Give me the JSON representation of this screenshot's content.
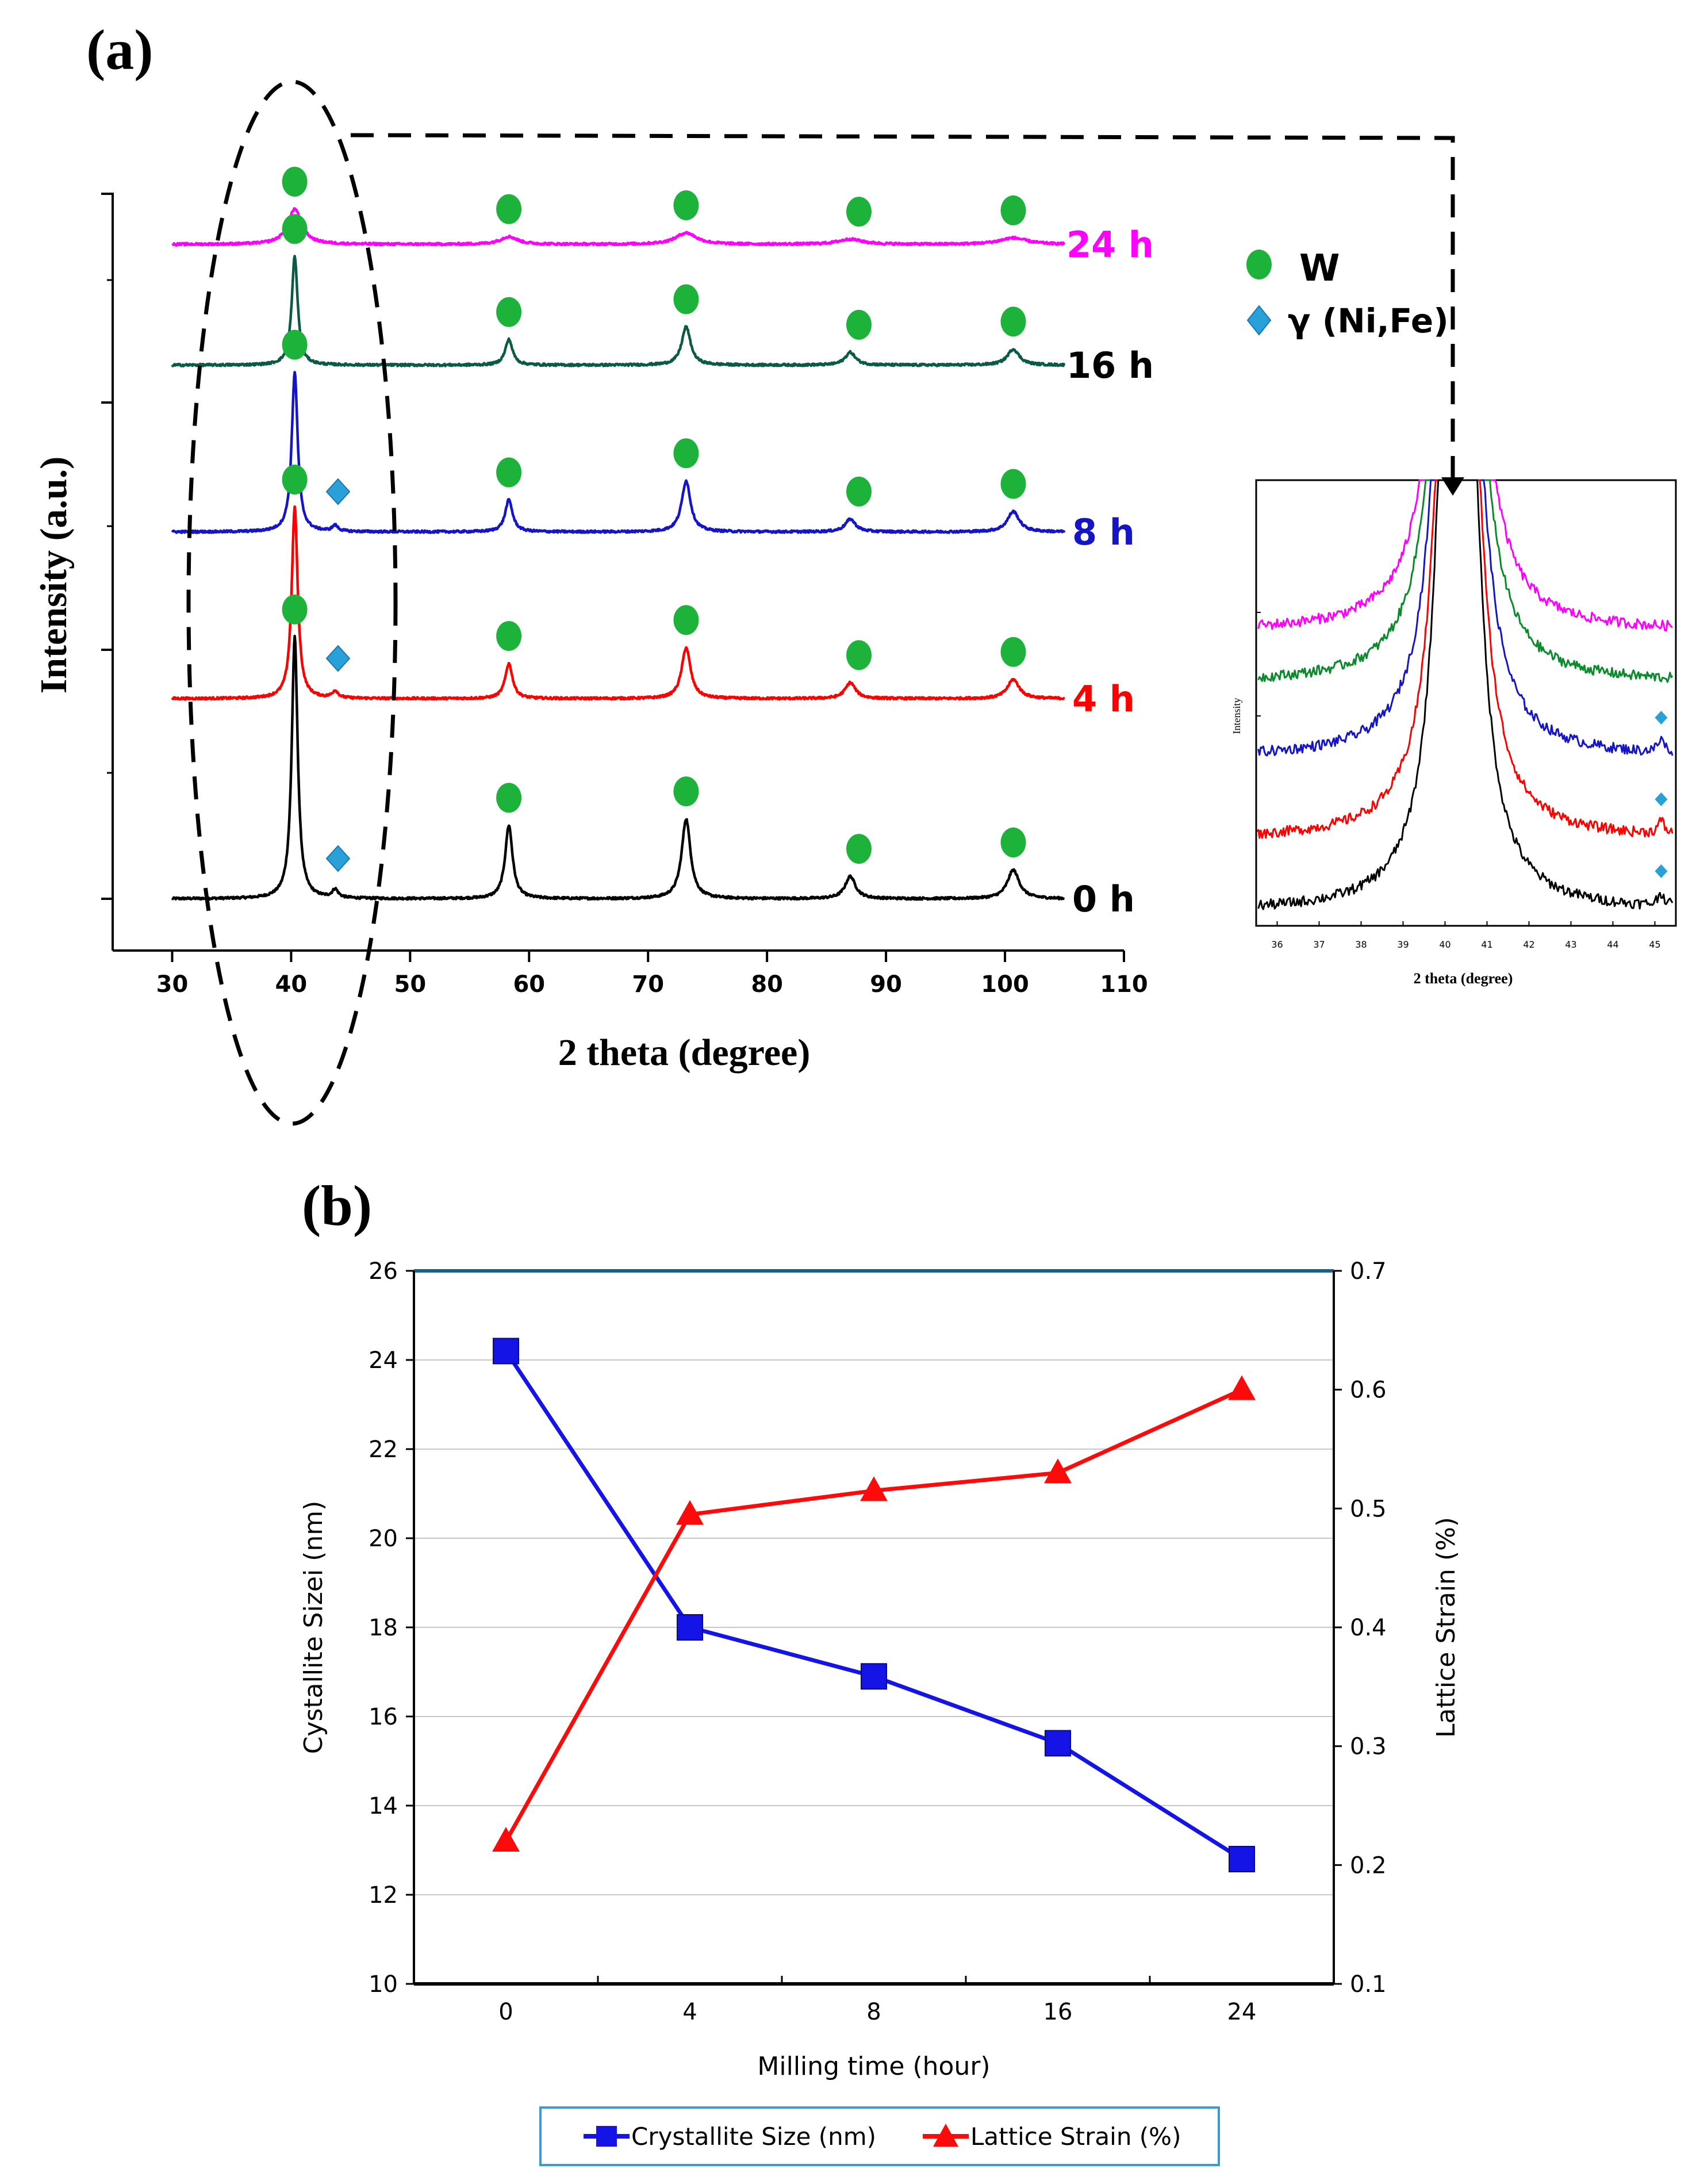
{
  "figure": {
    "panel_a_label": "(a)",
    "panel_b_label": "(b)"
  },
  "chart_data": [
    {
      "id": "xrd",
      "type": "line",
      "title": "",
      "xlabel": "2 theta (degree)",
      "ylabel": "Intensity (a.u.)",
      "xlim": [
        25,
        110
      ],
      "xticks": [
        "30",
        "40",
        "50",
        "60",
        "70",
        "80",
        "90",
        "100",
        "110"
      ],
      "peaks_W": [
        40.3,
        58.3,
        73.2,
        87.0,
        100.7
      ],
      "peak_gamma": 43.7,
      "legend": [
        {
          "marker": "circle",
          "label": "W",
          "color": "#1db33a"
        },
        {
          "marker": "diamond",
          "label": "γ (Ni,Fe)",
          "color": "#2aa0d8"
        }
      ],
      "series": [
        {
          "name": "0 h",
          "label": "0 h",
          "color": "#000000",
          "peak_heights": [
            41,
            11.5,
            12.5,
            3.5,
            4.5
          ],
          "gamma_height": 1.3,
          "has_gamma": true
        },
        {
          "name": "4 h",
          "label": "4 h",
          "color": "#ff0000",
          "peak_heights": [
            30,
            5.5,
            8,
            2.5,
            3
          ],
          "gamma_height": 1.1,
          "has_gamma": true
        },
        {
          "name": "8 h",
          "label": "8 h",
          "color": "#1515c8",
          "peak_heights": [
            25,
            5,
            8,
            2,
            3.2
          ],
          "gamma_height": 0.9,
          "has_gamma": true
        },
        {
          "name": "16 h",
          "label": "16 h",
          "color": "#0a5a46",
          "peak_heights": [
            17,
            4,
            6,
            2,
            2.5
          ],
          "gamma_height": 0,
          "has_gamma": false
        },
        {
          "name": "24 h",
          "label": "24 h",
          "color": "#ff00ff",
          "peak_heights": [
            5.5,
            1.2,
            1.8,
            0.8,
            1.0
          ],
          "gamma_height": 0,
          "has_gamma": false
        }
      ]
    },
    {
      "id": "inset",
      "type": "line",
      "xlabel": "2 theta (degree)",
      "ylabel": "Intensity",
      "xlim": [
        35.5,
        45.5
      ],
      "xticks": [
        "36",
        "37",
        "38",
        "39",
        "40",
        "41",
        "42",
        "43",
        "44",
        "45"
      ],
      "series": [
        {
          "name": "24 h",
          "color": "#ff00ff",
          "gamma": false
        },
        {
          "name": "16 h",
          "color": "#0a8a2a",
          "gamma": false
        },
        {
          "name": "8 h",
          "color": "#1515c8",
          "gamma": true
        },
        {
          "name": "4 h",
          "color": "#ff0000",
          "gamma": true
        },
        {
          "name": "0 h",
          "color": "#000000",
          "gamma": true
        }
      ]
    },
    {
      "id": "size_strain",
      "type": "line",
      "title": "",
      "xlabel": "Milling time (hour)",
      "ylabel": "Cystallite Sizei (nm)",
      "y2label": "Lattice Strain (%)",
      "categories": [
        "0",
        "4",
        "8",
        "16",
        "24"
      ],
      "ylim": [
        10,
        26
      ],
      "yticks": [
        "10",
        "12",
        "14",
        "16",
        "18",
        "20",
        "22",
        "24",
        "26"
      ],
      "y2lim": [
        0.1,
        0.7
      ],
      "y2ticks": [
        "0.1",
        "0.2",
        "0.3",
        "0.4",
        "0.5",
        "0.6",
        "0.7"
      ],
      "series": [
        {
          "name": "Crystallite Size (nm)",
          "axis": "left",
          "marker": "square",
          "color": "#1414e6",
          "values": [
            24.2,
            18.0,
            16.9,
            15.4,
            12.8
          ]
        },
        {
          "name": "Lattice Strain (%)",
          "axis": "right",
          "marker": "triangle",
          "color": "#ff0a0a",
          "values": [
            0.22,
            0.495,
            0.515,
            0.53,
            0.6
          ]
        }
      ],
      "legend_position": "bottom"
    }
  ]
}
